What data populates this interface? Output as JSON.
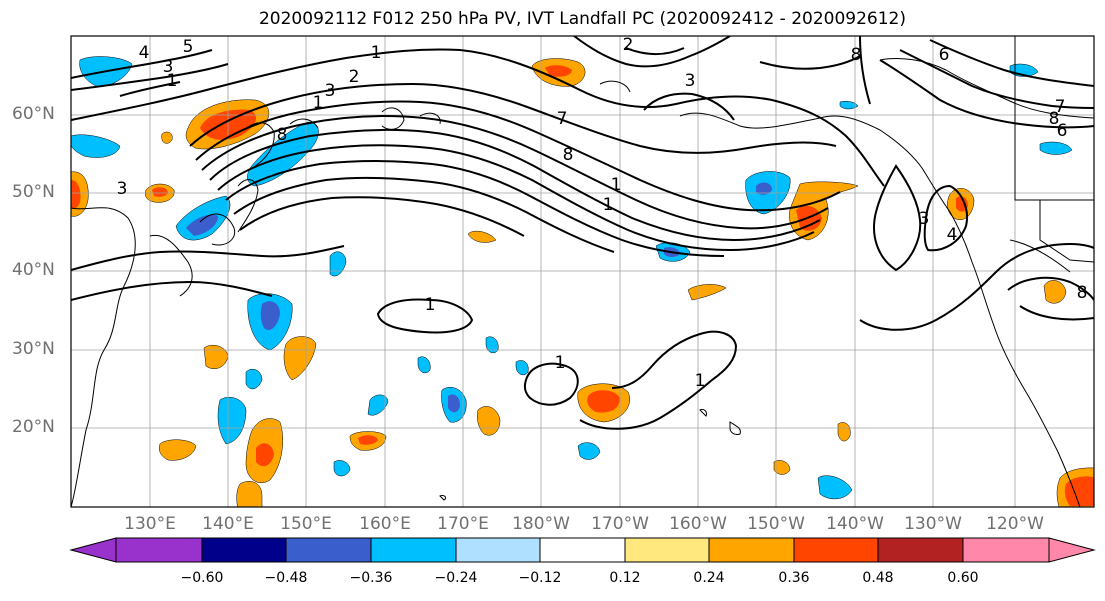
{
  "title": "2020092112 F012 250 hPa PV, IVT Landfall PC (2020092412 - 2020092612)",
  "latitude_labels": [
    "60°N",
    "50°N",
    "40°N",
    "30°N",
    "20°N"
  ],
  "longitude_labels": [
    "130°E",
    "140°E",
    "150°E",
    "160°E",
    "170°E",
    "180°W",
    "170°W",
    "160°W",
    "150°W",
    "140°W",
    "130°W",
    "120°W"
  ],
  "contour_labels": [
    "4",
    "5",
    "3",
    "1",
    "2",
    "1",
    "2",
    "3",
    "3",
    "8",
    "6",
    "8",
    "6",
    "8",
    "1",
    "3",
    "7",
    "7",
    "8",
    "1",
    "1",
    "1",
    "1",
    "3",
    "4",
    "8",
    "1"
  ],
  "colorbar": {
    "ticks": [
      "−0.60",
      "−0.48",
      "−0.36",
      "−0.24",
      "−0.12",
      "0.12",
      "0.24",
      "0.36",
      "0.48",
      "0.60"
    ],
    "colors": [
      "#9932cc",
      "#00008b",
      "#3a5fcd",
      "#00bfff",
      "#b0e0ff",
      "#ffffff",
      "#ffe97f",
      "#ffa500",
      "#ff4500",
      "#b22222",
      "#ff88aa"
    ]
  },
  "colors": {
    "contour": "#000000",
    "grid": "#a0a0a0",
    "label": "#707070"
  }
}
